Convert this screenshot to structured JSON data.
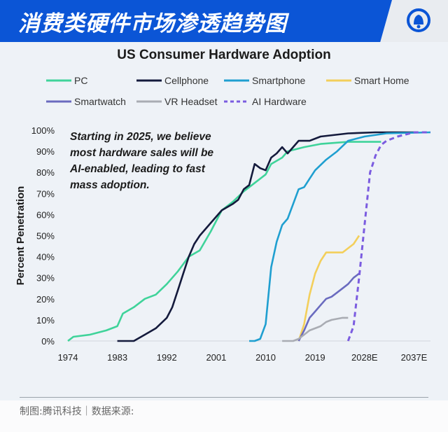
{
  "header": {
    "title": "消费类硬件市场渗透趋势图",
    "logo_icon": "tencent-news-bell-icon"
  },
  "footer": {
    "credit": "制图:腾讯科技｜数据来源:"
  },
  "chart_data": {
    "type": "line",
    "title": "US Consumer Hardware Adoption",
    "annotation": "Starting in 2025, we believe most hardware sales will be AI-enabled, leading to fast mass adoption.",
    "annotation_lines": [
      "Starting in 2025, we believe",
      "most hardware sales will be",
      "AI-enabled, leading to fast",
      "mass adoption."
    ],
    "xlabel": "",
    "ylabel": "Percent Penetration",
    "xlim": [
      1974,
      2040
    ],
    "ylim": [
      0,
      100
    ],
    "x_ticks": [
      1974,
      1983,
      1992,
      2001,
      2010,
      2019,
      2028,
      2037
    ],
    "x_tick_labels": [
      "1974",
      "1983",
      "1992",
      "2001",
      "2010",
      "2019",
      "2028E",
      "2037E"
    ],
    "y_ticks": [
      0,
      10,
      20,
      30,
      40,
      50,
      60,
      70,
      80,
      90,
      100
    ],
    "y_tick_labels": [
      "0%",
      "10%",
      "20%",
      "30%",
      "40%",
      "50%",
      "60%",
      "70%",
      "80%",
      "90%",
      "100%"
    ],
    "grid": false,
    "legend_position": "top",
    "series": [
      {
        "name": "PC",
        "color": "#3fd39a",
        "dashed": false,
        "x": [
          1974,
          1975,
          1978,
          1981,
          1983,
          1984,
          1986,
          1988,
          1990,
          1992,
          1994,
          1996,
          1998,
          2000,
          2002,
          2004,
          2006,
          2008,
          2010,
          2011,
          2013,
          2014,
          2017,
          2020,
          2025,
          2031
        ],
        "y": [
          0,
          2,
          3,
          5,
          7,
          13,
          16,
          20,
          22,
          27,
          33,
          40,
          43,
          52,
          62,
          66,
          71,
          75,
          79,
          84,
          87,
          90,
          92,
          93.5,
          94.5,
          94.5
        ]
      },
      {
        "name": "Cellphone",
        "color": "#141a3c",
        "dashed": false,
        "x": [
          1983,
          1986,
          1988,
          1990,
          1992,
          1993,
          1994,
          1995,
          1996,
          1997,
          1998,
          2000,
          2002,
          2004,
          2005,
          2006,
          2007,
          2008,
          2009,
          2010,
          2011,
          2012,
          2013,
          2014,
          2015,
          2016,
          2018,
          2020,
          2025,
          2030,
          2037
        ],
        "y": [
          0,
          0,
          3,
          6,
          11,
          16,
          24,
          32,
          40,
          46,
          50,
          56,
          62,
          65,
          67,
          72,
          74,
          84,
          82,
          81,
          87,
          89,
          92,
          89,
          92,
          95,
          95,
          97,
          98.5,
          99,
          99
        ]
      },
      {
        "name": "Smartphone",
        "color": "#1f9fd0",
        "dashed": false,
        "x": [
          2007,
          2008,
          2009,
          2010,
          2011,
          2012,
          2013,
          2014,
          2015,
          2016,
          2017,
          2018,
          2019,
          2021,
          2023,
          2025,
          2028,
          2032,
          2040
        ],
        "y": [
          0,
          0,
          1,
          8,
          35,
          47,
          55,
          58,
          65,
          72,
          73,
          77,
          81,
          86,
          90,
          95,
          97,
          98.5,
          99
        ]
      },
      {
        "name": "Smart Home",
        "color": "#f3cf5b",
        "dashed": false,
        "x": [
          2016,
          2017,
          2018,
          2019,
          2020,
          2021,
          2024,
          2026,
          2027
        ],
        "y": [
          0,
          8,
          22,
          32,
          38,
          42,
          42,
          46,
          50
        ]
      },
      {
        "name": "Smartwatch",
        "color": "#6a6bbf",
        "dashed": false,
        "x": [
          2016,
          2017,
          2018,
          2019,
          2020,
          2021,
          2022,
          2023,
          2024,
          2025,
          2026,
          2027
        ],
        "y": [
          0,
          5,
          11,
          14,
          17,
          20,
          21,
          23,
          25,
          27,
          30,
          32
        ]
      },
      {
        "name": "VR Headset",
        "color": "#a9acb3",
        "dashed": false,
        "x": [
          2013,
          2015,
          2016,
          2017,
          2018,
          2019,
          2020,
          2021,
          2022,
          2024,
          2025
        ],
        "y": [
          0,
          0,
          1,
          3,
          5,
          6,
          7,
          9,
          10,
          11,
          11
        ]
      },
      {
        "name": "AI Hardware",
        "color": "#7b5ce0",
        "dashed": true,
        "x": [
          2025,
          2026,
          2027,
          2028,
          2029,
          2030,
          2031,
          2032,
          2034,
          2037,
          2040
        ],
        "y": [
          0,
          7,
          30,
          55,
          80,
          88,
          93,
          95,
          97,
          99,
          99
        ]
      }
    ]
  }
}
